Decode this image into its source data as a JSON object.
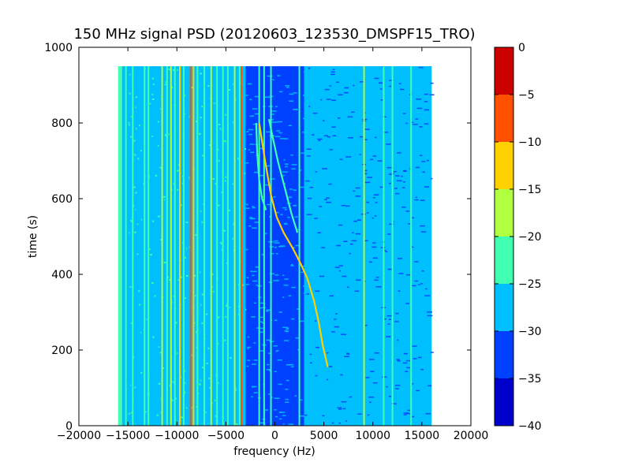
{
  "chart_data": {
    "type": "heatmap",
    "title": "150 MHz signal PSD (20120603_123530_DMSPF15_TRO)",
    "xlabel": "frequency (Hz)",
    "ylabel": "time (s)",
    "xlim": [
      -20000,
      20000
    ],
    "ylim": [
      0,
      1000
    ],
    "xticks": [
      -20000,
      -15000,
      -10000,
      -5000,
      0,
      5000,
      10000,
      15000,
      20000
    ],
    "xtick_labels": [
      "−20000",
      "−15000",
      "−10000",
      "−5000",
      "0",
      "5000",
      "10000",
      "15000",
      "20000"
    ],
    "yticks": [
      0,
      200,
      400,
      600,
      800,
      1000
    ],
    "ytick_labels": [
      "0",
      "200",
      "400",
      "600",
      "800",
      "1000"
    ],
    "data_extent": {
      "x": [
        -16000,
        16000
      ],
      "y": [
        0,
        950
      ]
    },
    "grid": false,
    "colorbar": {
      "levels": [
        -40,
        -35,
        -30,
        -25,
        -20,
        -15,
        -10,
        -5,
        0
      ],
      "tick_labels": [
        "−40",
        "−35",
        "−30",
        "−25",
        "−20",
        "−15",
        "−10",
        "−5",
        "0"
      ],
      "colors": [
        "#0000cd",
        "#0040ff",
        "#00bfff",
        "#40ffb0",
        "#b0ff40",
        "#ffd000",
        "#ff5000",
        "#cd0000"
      ]
    },
    "regions": [
      {
        "x": [
          -16000,
          -15600
        ],
        "level": -20
      },
      {
        "x": [
          -15600,
          -13000
        ],
        "level": -25
      },
      {
        "x": [
          -13000,
          -6000
        ],
        "level": -25
      },
      {
        "x": [
          -6000,
          -3000
        ],
        "level": -25
      },
      {
        "x": [
          -3000,
          3000
        ],
        "level": -30
      },
      {
        "x": [
          3000,
          16000
        ],
        "level": -25
      }
    ],
    "vertical_lines": [
      {
        "x": -15900,
        "level": -20
      },
      {
        "x": -15200,
        "level": -20
      },
      {
        "x": -14500,
        "level": -20
      },
      {
        "x": -13300,
        "level": -20
      },
      {
        "x": -12900,
        "level": -20
      },
      {
        "x": -11500,
        "level": -15
      },
      {
        "x": -11000,
        "level": -20
      },
      {
        "x": -10600,
        "level": -15
      },
      {
        "x": -10200,
        "level": -20
      },
      {
        "x": -9700,
        "level": -10
      },
      {
        "x": -9300,
        "level": -20
      },
      {
        "x": -8600,
        "level": -5
      },
      {
        "x": -8300,
        "level": -10
      },
      {
        "x": -7900,
        "level": -20
      },
      {
        "x": -7200,
        "level": -20
      },
      {
        "x": -6500,
        "level": -15
      },
      {
        "x": -5900,
        "level": -20
      },
      {
        "x": -5300,
        "level": -20
      },
      {
        "x": -4800,
        "level": -20
      },
      {
        "x": -4100,
        "level": -15
      },
      {
        "x": -3600,
        "level": -20
      },
      {
        "x": -3400,
        "level": -5
      },
      {
        "x": -1600,
        "level": -20
      },
      {
        "x": -1100,
        "level": -20
      },
      {
        "x": -400,
        "level": -20
      },
      {
        "x": 2500,
        "level": -20
      },
      {
        "x": 9100,
        "level": -15
      },
      {
        "x": 11100,
        "level": -20
      },
      {
        "x": 12000,
        "level": -20
      },
      {
        "x": 13900,
        "level": -20
      }
    ],
    "doppler_traces": [
      {
        "level": -10,
        "points": [
          [
            -1600,
            800
          ],
          [
            -1000,
            700
          ],
          [
            -400,
            610
          ],
          [
            200,
            550
          ],
          [
            900,
            510
          ],
          [
            1800,
            470
          ],
          [
            2600,
            430
          ],
          [
            3300,
            390
          ],
          [
            4000,
            330
          ],
          [
            4500,
            270
          ],
          [
            4900,
            210
          ],
          [
            5400,
            155
          ]
        ]
      },
      {
        "level": -20,
        "points": [
          [
            -600,
            810
          ],
          [
            -200,
            760
          ],
          [
            300,
            700
          ],
          [
            1000,
            630
          ],
          [
            1700,
            560
          ],
          [
            2300,
            510
          ]
        ]
      },
      {
        "level": -20,
        "points": [
          [
            -1900,
            800
          ],
          [
            -1800,
            720
          ],
          [
            -1600,
            650
          ],
          [
            -1300,
            600
          ],
          [
            -900,
            570
          ]
        ]
      }
    ]
  }
}
